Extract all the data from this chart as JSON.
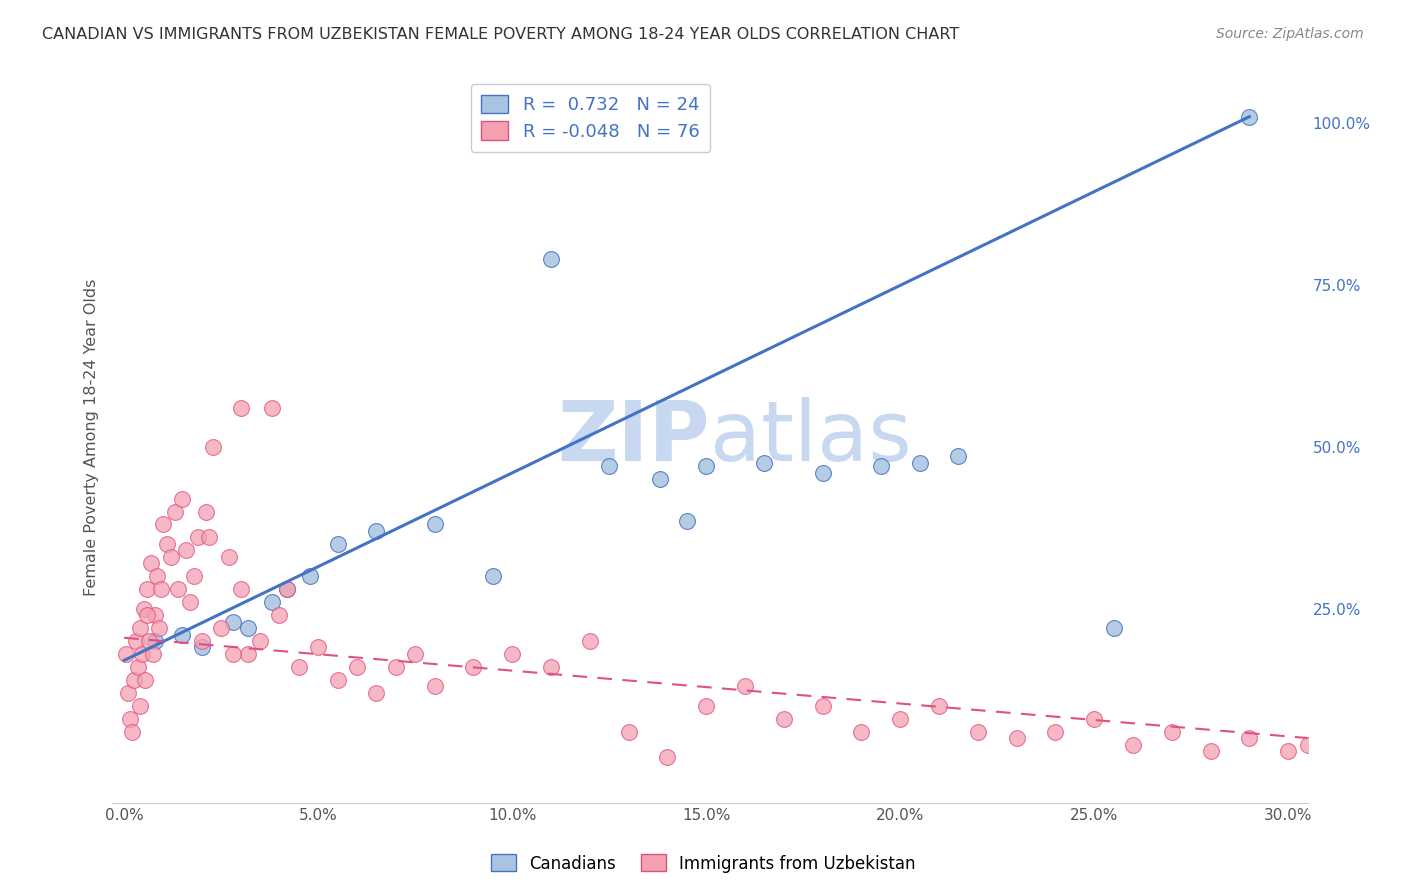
{
  "title": "CANADIAN VS IMMIGRANTS FROM UZBEKISTAN FEMALE POVERTY AMONG 18-24 YEAR OLDS CORRELATION CHART",
  "source": "Source: ZipAtlas.com",
  "ylabel": "Female Poverty Among 18-24 Year Olds",
  "xlabel_ticks": [
    "0.0%",
    "5.0%",
    "10.0%",
    "15.0%",
    "20.0%",
    "25.0%",
    "30.0%"
  ],
  "xlabel_vals": [
    0.0,
    5.0,
    10.0,
    15.0,
    20.0,
    25.0,
    30.0
  ],
  "ylabel_right_ticks": [
    "25.0%",
    "50.0%",
    "75.0%",
    "100.0%"
  ],
  "ylabel_right_vals": [
    25.0,
    50.0,
    75.0,
    100.0
  ],
  "xlim": [
    -0.3,
    30.5
  ],
  "ylim": [
    -5.0,
    108.0
  ],
  "canadians_x": [
    0.8,
    1.5,
    2.0,
    2.8,
    3.2,
    3.8,
    4.2,
    4.8,
    5.5,
    6.5,
    8.0,
    9.5,
    11.0,
    12.5,
    13.8,
    15.0,
    16.5,
    18.0,
    19.5,
    20.5,
    21.5,
    25.5,
    14.5,
    29.0
  ],
  "canadians_y": [
    20.0,
    21.0,
    19.0,
    23.0,
    22.0,
    26.0,
    28.0,
    30.0,
    35.0,
    37.0,
    38.0,
    30.0,
    79.0,
    47.0,
    45.0,
    47.0,
    47.5,
    46.0,
    47.0,
    47.5,
    48.5,
    22.0,
    38.5,
    101.0
  ],
  "uzbekistan_x": [
    0.05,
    0.1,
    0.15,
    0.2,
    0.25,
    0.3,
    0.35,
    0.4,
    0.45,
    0.5,
    0.55,
    0.6,
    0.65,
    0.7,
    0.75,
    0.8,
    0.85,
    0.9,
    0.95,
    1.0,
    1.1,
    1.2,
    1.3,
    1.4,
    1.5,
    1.6,
    1.7,
    1.8,
    1.9,
    2.0,
    2.1,
    2.2,
    2.3,
    2.5,
    2.7,
    3.0,
    3.2,
    3.5,
    3.8,
    4.0,
    4.2,
    4.5,
    5.0,
    5.5,
    6.0,
    6.5,
    7.0,
    7.5,
    8.0,
    9.0,
    10.0,
    11.0,
    12.0,
    13.0,
    14.0,
    15.0,
    16.0,
    17.0,
    18.0,
    19.0,
    20.0,
    21.0,
    22.0,
    23.0,
    24.0,
    25.0,
    26.0,
    27.0,
    28.0,
    29.0,
    30.0,
    30.5,
    2.8,
    3.0,
    0.4,
    0.6
  ],
  "uzbekistan_y": [
    18.0,
    12.0,
    8.0,
    6.0,
    14.0,
    20.0,
    16.0,
    22.0,
    18.0,
    25.0,
    14.0,
    28.0,
    20.0,
    32.0,
    18.0,
    24.0,
    30.0,
    22.0,
    28.0,
    38.0,
    35.0,
    33.0,
    40.0,
    28.0,
    42.0,
    34.0,
    26.0,
    30.0,
    36.0,
    20.0,
    40.0,
    36.0,
    50.0,
    22.0,
    33.0,
    56.0,
    18.0,
    20.0,
    56.0,
    24.0,
    28.0,
    16.0,
    19.0,
    14.0,
    16.0,
    12.0,
    16.0,
    18.0,
    13.0,
    16.0,
    18.0,
    16.0,
    20.0,
    6.0,
    2.0,
    10.0,
    13.0,
    8.0,
    10.0,
    6.0,
    8.0,
    10.0,
    6.0,
    5.0,
    6.0,
    8.0,
    4.0,
    6.0,
    3.0,
    5.0,
    3.0,
    4.0,
    18.0,
    28.0,
    10.0,
    24.0
  ],
  "canadian_color": "#a8c4e0",
  "uzbekistan_color": "#f4a0b0",
  "canadian_line_color": "#4472c4",
  "uzbekistan_line_color": "#e05080",
  "legend_r_canadian": "0.732",
  "legend_n_canadian": "24",
  "legend_r_uzbekistan": "-0.048",
  "legend_n_uzbekistan": "76",
  "watermark_zip": "ZIP",
  "watermark_atlas": "atlas",
  "watermark_color_zip": "#c8d8f0",
  "watermark_color_atlas": "#c8d8f0",
  "background_color": "#ffffff",
  "grid_color": "#cccccc",
  "cdn_reg_x0": 0.0,
  "cdn_reg_y0": 17.0,
  "cdn_reg_x1": 29.0,
  "cdn_reg_y1": 101.0,
  "uzb_reg_x0": 0.0,
  "uzb_reg_y0": 20.5,
  "uzb_reg_x1": 30.5,
  "uzb_reg_y1": 5.0
}
